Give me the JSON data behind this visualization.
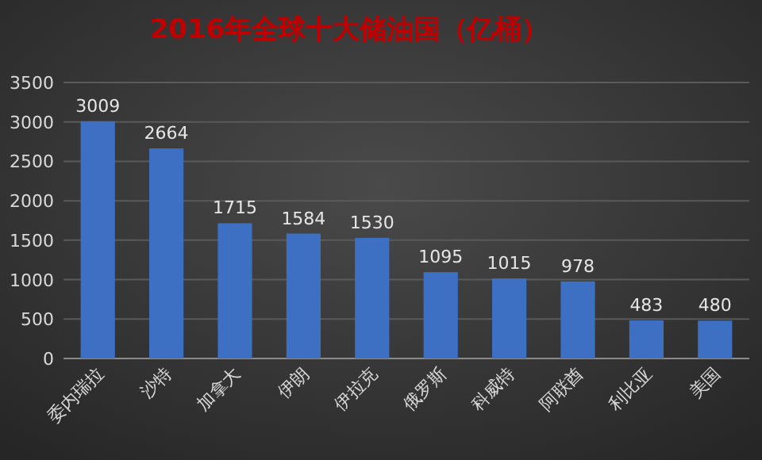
{
  "chart_data": {
    "type": "bar",
    "title": "2016年全球十大储油国（亿桶）",
    "categories": [
      "委内瑞拉",
      "沙特",
      "加拿大",
      "伊朗",
      "伊拉克",
      "俄罗斯",
      "科威特",
      "阿联酋",
      "利比亚",
      "美国"
    ],
    "values": [
      3009,
      2664,
      1715,
      1584,
      1530,
      1095,
      1015,
      978,
      483,
      480
    ],
    "color": "#3d6fc2",
    "ylim": [
      0,
      3500
    ],
    "yticks": [
      0,
      500,
      1000,
      1500,
      2000,
      2500,
      3000,
      3500
    ],
    "grid": "y",
    "data_labels": true
  }
}
